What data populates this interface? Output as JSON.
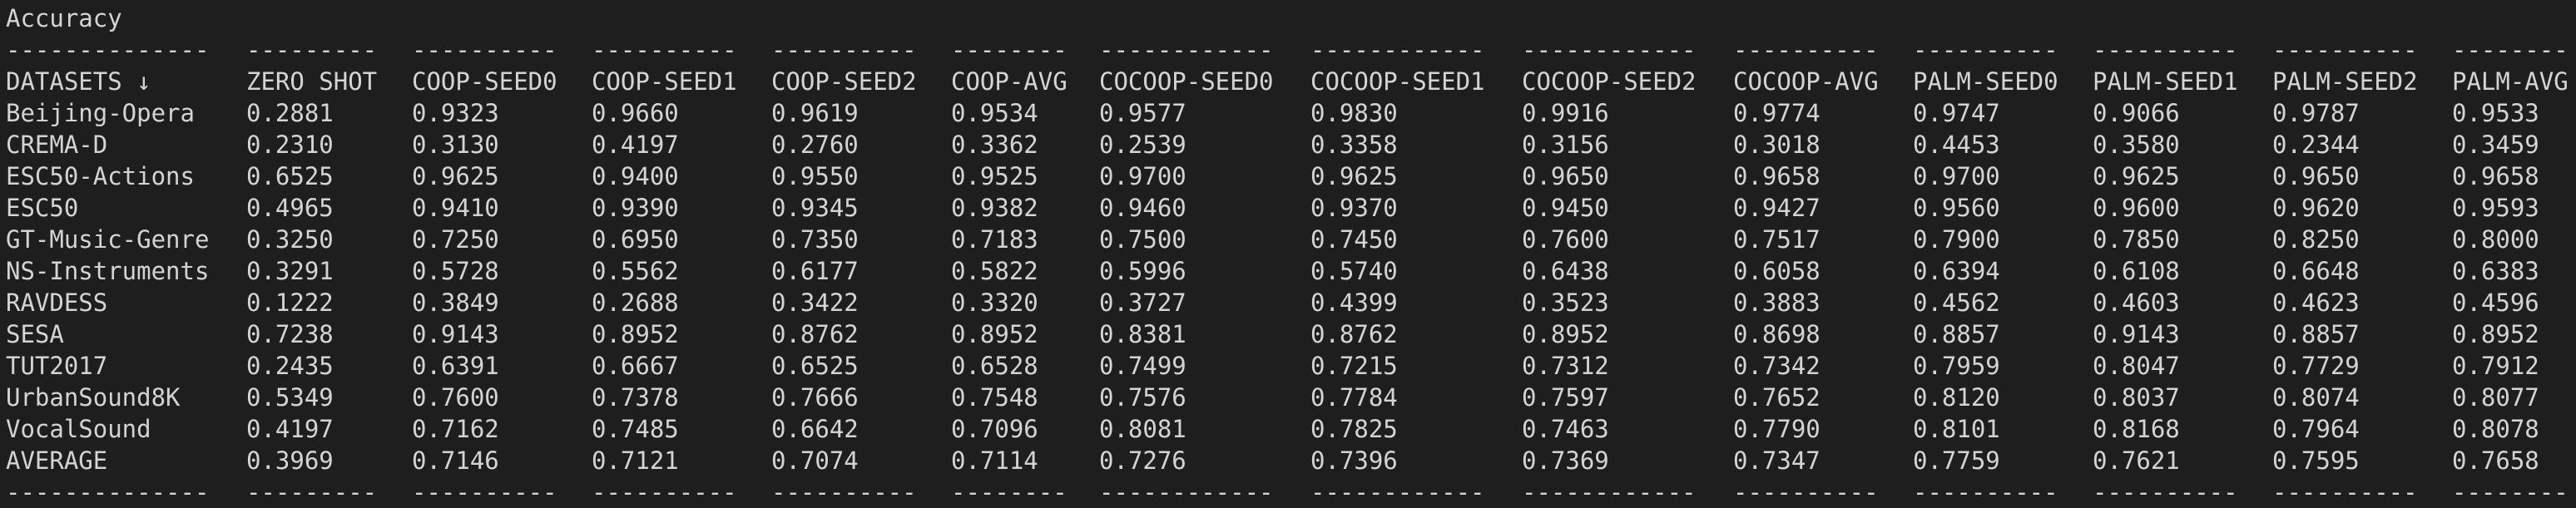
{
  "title": "Accuracy",
  "separator_row": [
    "--------------",
    "---------",
    "----------",
    "----------",
    "----------",
    "--------",
    "------------",
    "------------",
    "------------",
    "----------",
    "----------",
    "----------",
    "----------",
    "--------"
  ],
  "header": [
    "DATASETS ↓",
    "ZERO SHOT",
    "COOP-SEED0",
    "COOP-SEED1",
    "COOP-SEED2",
    "COOP-AVG",
    "COCOOP-SEED0",
    "COCOOP-SEED1",
    "COCOOP-SEED2",
    "COCOOP-AVG",
    "PALM-SEED0",
    "PALM-SEED1",
    "PALM-SEED2",
    "PALM-AVG"
  ],
  "rows": [
    [
      "Beijing-Opera",
      "0.2881",
      "0.9323",
      "0.9660",
      "0.9619",
      "0.9534",
      "0.9577",
      "0.9830",
      "0.9916",
      "0.9774",
      "0.9747",
      "0.9066",
      "0.9787",
      "0.9533"
    ],
    [
      "CREMA-D",
      "0.2310",
      "0.3130",
      "0.4197",
      "0.2760",
      "0.3362",
      "0.2539",
      "0.3358",
      "0.3156",
      "0.3018",
      "0.4453",
      "0.3580",
      "0.2344",
      "0.3459"
    ],
    [
      "ESC50-Actions",
      "0.6525",
      "0.9625",
      "0.9400",
      "0.9550",
      "0.9525",
      "0.9700",
      "0.9625",
      "0.9650",
      "0.9658",
      "0.9700",
      "0.9625",
      "0.9650",
      "0.9658"
    ],
    [
      "ESC50",
      "0.4965",
      "0.9410",
      "0.9390",
      "0.9345",
      "0.9382",
      "0.9460",
      "0.9370",
      "0.9450",
      "0.9427",
      "0.9560",
      "0.9600",
      "0.9620",
      "0.9593"
    ],
    [
      "GT-Music-Genre",
      "0.3250",
      "0.7250",
      "0.6950",
      "0.7350",
      "0.7183",
      "0.7500",
      "0.7450",
      "0.7600",
      "0.7517",
      "0.7900",
      "0.7850",
      "0.8250",
      "0.8000"
    ],
    [
      "NS-Instruments",
      "0.3291",
      "0.5728",
      "0.5562",
      "0.6177",
      "0.5822",
      "0.5996",
      "0.5740",
      "0.6438",
      "0.6058",
      "0.6394",
      "0.6108",
      "0.6648",
      "0.6383"
    ],
    [
      "RAVDESS",
      "0.1222",
      "0.3849",
      "0.2688",
      "0.3422",
      "0.3320",
      "0.3727",
      "0.4399",
      "0.3523",
      "0.3883",
      "0.4562",
      "0.4603",
      "0.4623",
      "0.4596"
    ],
    [
      "SESA",
      "0.7238",
      "0.9143",
      "0.8952",
      "0.8762",
      "0.8952",
      "0.8381",
      "0.8762",
      "0.8952",
      "0.8698",
      "0.8857",
      "0.9143",
      "0.8857",
      "0.8952"
    ],
    [
      "TUT2017",
      "0.2435",
      "0.6391",
      "0.6667",
      "0.6525",
      "0.6528",
      "0.7499",
      "0.7215",
      "0.7312",
      "0.7342",
      "0.7959",
      "0.8047",
      "0.7729",
      "0.7912"
    ],
    [
      "UrbanSound8K",
      "0.5349",
      "0.7600",
      "0.7378",
      "0.7666",
      "0.7548",
      "0.7576",
      "0.7784",
      "0.7597",
      "0.7652",
      "0.8120",
      "0.8037",
      "0.8074",
      "0.8077"
    ],
    [
      "VocalSound",
      "0.4197",
      "0.7162",
      "0.7485",
      "0.6642",
      "0.7096",
      "0.8081",
      "0.7825",
      "0.7463",
      "0.7790",
      "0.8101",
      "0.8168",
      "0.7964",
      "0.8078"
    ],
    [
      "AVERAGE",
      "0.3969",
      "0.7146",
      "0.7121",
      "0.7074",
      "0.7114",
      "0.7276",
      "0.7396",
      "0.7369",
      "0.7347",
      "0.7759",
      "0.7621",
      "0.7595",
      "0.7658"
    ]
  ]
}
